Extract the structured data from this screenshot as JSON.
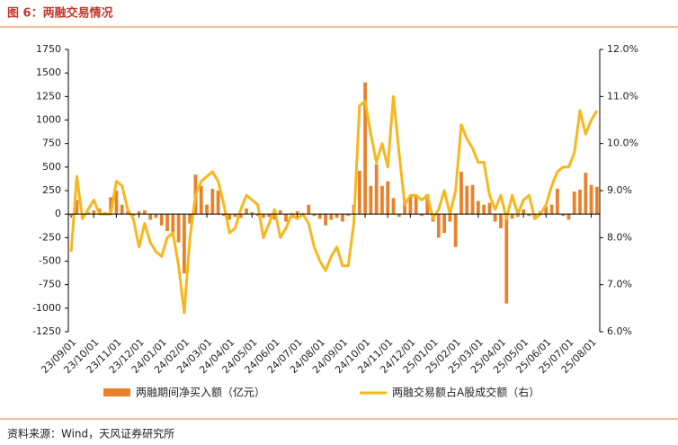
{
  "title": "图 6：两融交易情况",
  "source": "资料来源：Wind，天风证券研究所",
  "chart_data": {
    "type": "bar-line",
    "categories": [
      "23/09/01",
      null,
      null,
      null,
      "23/10/01",
      null,
      null,
      null,
      "23/11/01",
      null,
      null,
      null,
      "23/12/01",
      null,
      null,
      null,
      "24/01/01",
      null,
      null,
      null,
      "24/02/01",
      null,
      null,
      null,
      "24/03/01",
      null,
      null,
      null,
      "24/04/01",
      null,
      null,
      null,
      "24/05/01",
      null,
      null,
      null,
      "24/06/01",
      null,
      null,
      null,
      "24/07/01",
      null,
      null,
      null,
      "24/08/01",
      null,
      null,
      null,
      "24/09/01",
      null,
      null,
      null,
      "24/10/01",
      null,
      null,
      null,
      "24/11/01",
      null,
      null,
      null,
      "24/12/01",
      null,
      null,
      null,
      "25/01/01",
      null,
      null,
      null,
      "25/02/01",
      null,
      null,
      null,
      "25/03/01",
      null,
      null,
      null,
      "25/04/01",
      null,
      null,
      null,
      "25/05/01",
      null,
      null,
      null,
      "25/06/01",
      null,
      null,
      null,
      "25/07/01",
      null,
      null,
      null,
      "25/08/01",
      null
    ],
    "series": [
      {
        "name": "两融期间净买入额（亿元）",
        "type": "bar",
        "color": "#e8822a",
        "values": [
          -20,
          150,
          -30,
          20,
          40,
          60,
          20,
          180,
          250,
          100,
          30,
          -20,
          30,
          40,
          -60,
          -40,
          -120,
          -180,
          -200,
          -300,
          -630,
          -100,
          420,
          300,
          100,
          270,
          250,
          -20,
          -60,
          -30,
          -40,
          60,
          20,
          -20,
          -40,
          -30,
          -60,
          40,
          -80,
          -40,
          30,
          -20,
          100,
          -20,
          -50,
          -120,
          -60,
          -40,
          -80,
          -20,
          100,
          460,
          1400,
          300,
          530,
          300,
          350,
          170,
          -30,
          130,
          190,
          200,
          -20,
          210,
          -80,
          -250,
          -200,
          -80,
          -350,
          450,
          300,
          310,
          140,
          100,
          120,
          -80,
          -150,
          -950,
          -50,
          -30,
          50,
          -20,
          -40,
          30,
          80,
          100,
          270,
          -20,
          -60,
          240,
          260,
          440,
          310,
          290
        ]
      },
      {
        "name": "两融交易额占A股成交额（右）",
        "type": "line",
        "axis": "y2",
        "color": "#f7b71d",
        "values": [
          7.7,
          9.3,
          8.4,
          8.6,
          8.8,
          8.5,
          8.5,
          8.5,
          9.2,
          9.1,
          8.6,
          8.4,
          7.8,
          8.3,
          7.9,
          7.7,
          7.6,
          8.0,
          8.1,
          7.4,
          6.4,
          8.0,
          8.9,
          9.2,
          9.3,
          9.4,
          9.2,
          8.7,
          8.1,
          8.2,
          8.6,
          8.9,
          8.8,
          8.7,
          8.0,
          8.3,
          8.6,
          8.0,
          8.2,
          8.5,
          8.4,
          8.5,
          8.3,
          7.8,
          7.5,
          7.3,
          7.6,
          7.8,
          7.4,
          7.4,
          8.3,
          10.8,
          10.9,
          10.2,
          9.6,
          10.0,
          9.5,
          11.0,
          9.8,
          8.7,
          8.9,
          8.9,
          8.8,
          8.9,
          8.4,
          8.6,
          9.0,
          8.5,
          9.0,
          10.4,
          10.1,
          9.9,
          9.6,
          9.6,
          8.9,
          8.6,
          8.9,
          8.4,
          8.9,
          8.5,
          8.8,
          8.9,
          8.4,
          8.5,
          8.7,
          9.1,
          9.4,
          9.5,
          9.5,
          9.8,
          10.7,
          10.2,
          10.5,
          10.7
        ]
      }
    ],
    "ylim": [
      -1250,
      1750
    ],
    "yticks": [
      -1250,
      -1000,
      -750,
      -500,
      -250,
      0,
      250,
      500,
      750,
      1000,
      1250,
      1500,
      1750
    ],
    "y2lim": [
      6,
      12
    ],
    "y2ticks": [
      {
        "value": 6,
        "label": "6.0%"
      },
      {
        "value": 7,
        "label": "7.0%"
      },
      {
        "value": 8,
        "label": "8.0%"
      },
      {
        "value": 9,
        "label": "9.0%"
      },
      {
        "value": 10,
        "label": "10.0%"
      },
      {
        "value": 11,
        "label": "11.0%"
      },
      {
        "value": 12,
        "label": "12.0%"
      }
    ]
  }
}
